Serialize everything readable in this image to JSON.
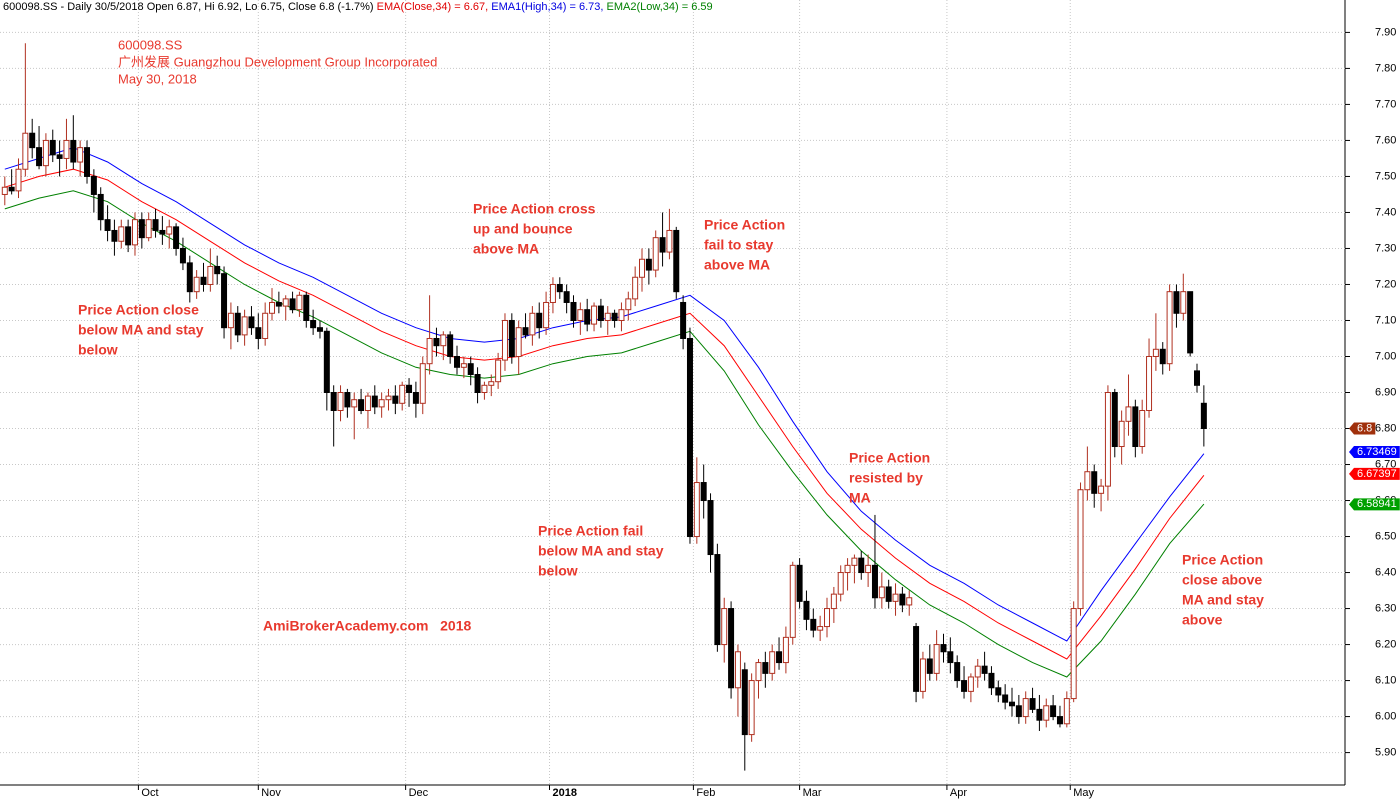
{
  "chart_data": {
    "type": "candlestick",
    "header": [
      {
        "text": "600098.SS - Daily 30/5/2018 Open 6.87, Hi 6.92, Lo 6.75, Close 6.8 (-1.7%) ",
        "color": "#000000"
      },
      {
        "text": "EMA(Close,34) = 6.67, ",
        "color": "#e00000"
      },
      {
        "text": "EMA1(High,34) = 6.73, ",
        "color": "#0000e0"
      },
      {
        "text": "EMA2(Low,34) = 6.59",
        "color": "#008000"
      }
    ],
    "title": [
      "600098.SS",
      "广州发展 Guangzhou Development Group Incorporated",
      "May 30, 2018"
    ],
    "watermark": "AmiBrokerAcademy.com   2018",
    "annotations": [
      {
        "lines": [
          "Price Action close",
          "below MA and stay",
          "below"
        ]
      },
      {
        "lines": [
          "Price Action cross",
          "up and bounce",
          "above MA"
        ]
      },
      {
        "lines": [
          "Price Action",
          "fail to stay",
          "above MA"
        ]
      },
      {
        "lines": [
          "Price Action fail",
          "below MA and stay",
          "below"
        ]
      },
      {
        "lines": [
          "Price Action",
          "resisted by",
          "MA"
        ]
      },
      {
        "lines": [
          "Price Action",
          "close above",
          "MA and stay",
          "above"
        ]
      }
    ],
    "xlim": [
      -0.7,
      195.6
    ],
    "xticks": [
      {
        "value": 19.5,
        "label": "Oct"
      },
      {
        "value": 37,
        "label": "Nov"
      },
      {
        "value": 58.5,
        "label": "Dec"
      },
      {
        "value": 79.5,
        "label": "2018"
      },
      {
        "value": 100.5,
        "label": "Feb"
      },
      {
        "value": 116,
        "label": "Mar"
      },
      {
        "value": 137.5,
        "label": "Apr"
      },
      {
        "value": 155.5,
        "label": "May"
      }
    ],
    "ylim": [
      5.81,
      7.99
    ],
    "yticks": [
      {
        "value": 5.9,
        "label": "5.90"
      },
      {
        "value": 6.0,
        "label": "6.00"
      },
      {
        "value": 6.1,
        "label": "6.10"
      },
      {
        "value": 6.2,
        "label": "6.20"
      },
      {
        "value": 6.3,
        "label": "6.30"
      },
      {
        "value": 6.4,
        "label": "6.40"
      },
      {
        "value": 6.5,
        "label": "6.50"
      },
      {
        "value": 6.6,
        "label": "6.60"
      },
      {
        "value": 6.7,
        "label": "6.70"
      },
      {
        "value": 6.8,
        "label": "6.80"
      },
      {
        "value": 6.9,
        "label": "6.90"
      },
      {
        "value": 7.0,
        "label": "7.00"
      },
      {
        "value": 7.1,
        "label": "7.10"
      },
      {
        "value": 7.2,
        "label": "7.20"
      },
      {
        "value": 7.3,
        "label": "7.30"
      },
      {
        "value": 7.4,
        "label": "7.40"
      },
      {
        "value": 7.5,
        "label": "7.50"
      },
      {
        "value": 7.6,
        "label": "7.60"
      },
      {
        "value": 7.7,
        "label": "7.70"
      },
      {
        "value": 7.8,
        "label": "7.80"
      },
      {
        "value": 7.9,
        "label": "7.90"
      }
    ],
    "grid": true,
    "up_color": "#b03020",
    "down_color": "#000000",
    "ohlc": [
      [
        7.45,
        7.5,
        7.42,
        7.47
      ],
      [
        7.47,
        7.52,
        7.45,
        7.46
      ],
      [
        7.46,
        7.55,
        7.44,
        7.52
      ],
      [
        7.52,
        7.87,
        7.5,
        7.62
      ],
      [
        7.62,
        7.66,
        7.55,
        7.58
      ],
      [
        7.58,
        7.64,
        7.52,
        7.53
      ],
      [
        7.53,
        7.62,
        7.5,
        7.6
      ],
      [
        7.6,
        7.63,
        7.54,
        7.56
      ],
      [
        7.56,
        7.6,
        7.5,
        7.55
      ],
      [
        7.55,
        7.66,
        7.52,
        7.6
      ],
      [
        7.6,
        7.67,
        7.52,
        7.54
      ],
      [
        7.54,
        7.6,
        7.5,
        7.58
      ],
      [
        7.58,
        7.6,
        7.48,
        7.5
      ],
      [
        7.5,
        7.52,
        7.4,
        7.45
      ],
      [
        7.45,
        7.47,
        7.35,
        7.38
      ],
      [
        7.38,
        7.42,
        7.32,
        7.35
      ],
      [
        7.35,
        7.38,
        7.28,
        7.32
      ],
      [
        7.32,
        7.38,
        7.3,
        7.36
      ],
      [
        7.36,
        7.38,
        7.29,
        7.31
      ],
      [
        7.31,
        7.4,
        7.28,
        7.38
      ],
      [
        7.38,
        7.4,
        7.3,
        7.33
      ],
      [
        7.33,
        7.4,
        7.32,
        7.38
      ],
      [
        7.38,
        7.41,
        7.33,
        7.35
      ],
      [
        7.35,
        7.39,
        7.31,
        7.34
      ],
      [
        7.34,
        7.38,
        7.3,
        7.36
      ],
      [
        7.36,
        7.37,
        7.28,
        7.3
      ],
      [
        7.3,
        7.33,
        7.24,
        7.26
      ],
      [
        7.26,
        7.28,
        7.15,
        7.18
      ],
      [
        7.18,
        7.24,
        7.16,
        7.22
      ],
      [
        7.22,
        7.26,
        7.18,
        7.2
      ],
      [
        7.2,
        7.3,
        7.18,
        7.25
      ],
      [
        7.25,
        7.28,
        7.2,
        7.23
      ],
      [
        7.23,
        7.25,
        7.05,
        7.08
      ],
      [
        7.08,
        7.15,
        7.02,
        7.12
      ],
      [
        7.12,
        7.14,
        7.04,
        7.06
      ],
      [
        7.06,
        7.13,
        7.03,
        7.11
      ],
      [
        7.11,
        7.14,
        7.06,
        7.08
      ],
      [
        7.08,
        7.12,
        7.02,
        7.05
      ],
      [
        7.05,
        7.15,
        7.03,
        7.12
      ],
      [
        7.12,
        7.19,
        7.1,
        7.15
      ],
      [
        7.15,
        7.18,
        7.12,
        7.14
      ],
      [
        7.14,
        7.17,
        7.1,
        7.16
      ],
      [
        7.16,
        7.18,
        7.12,
        7.13
      ],
      [
        7.13,
        7.18,
        7.11,
        7.17
      ],
      [
        7.17,
        7.18,
        7.08,
        7.1
      ],
      [
        7.1,
        7.13,
        7.06,
        7.08
      ],
      [
        7.08,
        7.1,
        7.05,
        7.07
      ],
      [
        7.07,
        7.08,
        6.85,
        6.9
      ],
      [
        6.9,
        6.92,
        6.75,
        6.85
      ],
      [
        6.85,
        6.92,
        6.82,
        6.9
      ],
      [
        6.9,
        6.91,
        6.83,
        6.86
      ],
      [
        6.86,
        6.9,
        6.77,
        6.88
      ],
      [
        6.88,
        6.91,
        6.84,
        6.85
      ],
      [
        6.85,
        6.9,
        6.8,
        6.89
      ],
      [
        6.89,
        6.92,
        6.84,
        6.86
      ],
      [
        6.86,
        6.9,
        6.83,
        6.88
      ],
      [
        6.88,
        6.91,
        6.85,
        6.89
      ],
      [
        6.89,
        6.92,
        6.84,
        6.87
      ],
      [
        6.87,
        6.93,
        6.85,
        6.92
      ],
      [
        6.92,
        6.94,
        6.86,
        6.9
      ],
      [
        6.9,
        6.93,
        6.83,
        6.87
      ],
      [
        6.87,
        7.0,
        6.84,
        6.98
      ],
      [
        6.98,
        7.17,
        6.95,
        7.05
      ],
      [
        7.05,
        7.08,
        7.0,
        7.03
      ],
      [
        7.03,
        7.07,
        6.99,
        7.06
      ],
      [
        7.06,
        7.07,
        6.98,
        7.0
      ],
      [
        7.0,
        7.03,
        6.95,
        6.97
      ],
      [
        6.97,
        7.0,
        6.94,
        6.98
      ],
      [
        6.98,
        7.0,
        6.92,
        6.95
      ],
      [
        6.95,
        6.97,
        6.87,
        6.9
      ],
      [
        6.9,
        6.93,
        6.88,
        6.92
      ],
      [
        6.92,
        6.95,
        6.89,
        6.93
      ],
      [
        6.93,
        7.01,
        6.91,
        6.99
      ],
      [
        6.99,
        7.12,
        6.96,
        7.1
      ],
      [
        7.1,
        7.12,
        6.98,
        7.0
      ],
      [
        7.0,
        7.1,
        6.95,
        7.08
      ],
      [
        7.08,
        7.12,
        7.05,
        7.06
      ],
      [
        7.06,
        7.14,
        7.03,
        7.12
      ],
      [
        7.12,
        7.15,
        7.05,
        7.08
      ],
      [
        7.08,
        7.18,
        7.06,
        7.15
      ],
      [
        7.15,
        7.22,
        7.12,
        7.2
      ],
      [
        7.2,
        7.22,
        7.16,
        7.18
      ],
      [
        7.18,
        7.2,
        7.12,
        7.15
      ],
      [
        7.15,
        7.17,
        7.08,
        7.1
      ],
      [
        7.1,
        7.15,
        7.06,
        7.13
      ],
      [
        7.13,
        7.16,
        7.07,
        7.09
      ],
      [
        7.09,
        7.15,
        7.07,
        7.14
      ],
      [
        7.14,
        7.16,
        7.08,
        7.1
      ],
      [
        7.1,
        7.14,
        7.06,
        7.12
      ],
      [
        7.12,
        7.13,
        7.08,
        7.1
      ],
      [
        7.1,
        7.15,
        7.07,
        7.13
      ],
      [
        7.13,
        7.18,
        7.1,
        7.16
      ],
      [
        7.16,
        7.25,
        7.14,
        7.22
      ],
      [
        7.22,
        7.3,
        7.18,
        7.27
      ],
      [
        7.27,
        7.3,
        7.2,
        7.24
      ],
      [
        7.24,
        7.35,
        7.22,
        7.33
      ],
      [
        7.33,
        7.4,
        7.25,
        7.29
      ],
      [
        7.29,
        7.41,
        7.27,
        7.35
      ],
      [
        7.35,
        7.36,
        7.16,
        7.18
      ],
      [
        7.15,
        7.17,
        7.02,
        7.05
      ],
      [
        7.05,
        7.08,
        6.48,
        6.5
      ],
      [
        6.5,
        6.72,
        6.48,
        6.65
      ],
      [
        6.65,
        6.7,
        6.55,
        6.6
      ],
      [
        6.6,
        6.62,
        6.4,
        6.45
      ],
      [
        6.45,
        6.48,
        6.18,
        6.2
      ],
      [
        6.2,
        6.33,
        6.15,
        6.3
      ],
      [
        6.3,
        6.32,
        6.05,
        6.08
      ],
      [
        6.08,
        6.2,
        6.0,
        6.18
      ],
      [
        6.13,
        6.15,
        5.85,
        5.95
      ],
      [
        5.95,
        6.12,
        5.93,
        6.1
      ],
      [
        6.1,
        6.16,
        6.05,
        6.15
      ],
      [
        6.15,
        6.18,
        6.08,
        6.12
      ],
      [
        6.12,
        6.2,
        6.1,
        6.18
      ],
      [
        6.18,
        6.22,
        6.13,
        6.15
      ],
      [
        6.15,
        6.25,
        6.12,
        6.22
      ],
      [
        6.22,
        6.43,
        6.2,
        6.42
      ],
      [
        6.42,
        6.44,
        6.3,
        6.32
      ],
      [
        6.32,
        6.35,
        6.24,
        6.27
      ],
      [
        6.27,
        6.3,
        6.22,
        6.24
      ],
      [
        6.24,
        6.28,
        6.21,
        6.25
      ],
      [
        6.25,
        6.33,
        6.22,
        6.3
      ],
      [
        6.3,
        6.36,
        6.26,
        6.34
      ],
      [
        6.34,
        6.42,
        6.32,
        6.4
      ],
      [
        6.4,
        6.44,
        6.35,
        6.42
      ],
      [
        6.42,
        6.45,
        6.37,
        6.44
      ],
      [
        6.44,
        6.46,
        6.38,
        6.4
      ],
      [
        6.4,
        6.45,
        6.36,
        6.42
      ],
      [
        6.42,
        6.56,
        6.3,
        6.33
      ],
      [
        6.33,
        6.4,
        6.3,
        6.36
      ],
      [
        6.36,
        6.38,
        6.3,
        6.32
      ],
      [
        6.32,
        6.37,
        6.28,
        6.34
      ],
      [
        6.34,
        6.36,
        6.29,
        6.31
      ],
      [
        6.31,
        6.35,
        6.28,
        6.33
      ],
      [
        6.25,
        6.26,
        6.04,
        6.07
      ],
      [
        6.07,
        6.18,
        6.05,
        6.16
      ],
      [
        6.16,
        6.2,
        6.1,
        6.12
      ],
      [
        6.12,
        6.24,
        6.1,
        6.2
      ],
      [
        6.2,
        6.23,
        6.15,
        6.18
      ],
      [
        6.18,
        6.22,
        6.12,
        6.15
      ],
      [
        6.15,
        6.17,
        6.08,
        6.1
      ],
      [
        6.1,
        6.14,
        6.05,
        6.07
      ],
      [
        6.07,
        6.12,
        6.04,
        6.11
      ],
      [
        6.11,
        6.16,
        6.08,
        6.14
      ],
      [
        6.14,
        6.18,
        6.1,
        6.12
      ],
      [
        6.12,
        6.14,
        6.06,
        6.08
      ],
      [
        6.08,
        6.1,
        6.04,
        6.06
      ],
      [
        6.06,
        6.09,
        6.02,
        6.04
      ],
      [
        6.04,
        6.08,
        6.0,
        6.03
      ],
      [
        6.03,
        6.06,
        5.98,
        6.0
      ],
      [
        6.0,
        6.07,
        5.98,
        6.05
      ],
      [
        6.05,
        6.08,
        6.01,
        6.02
      ],
      [
        6.02,
        6.06,
        5.96,
        5.99
      ],
      [
        5.99,
        6.05,
        5.97,
        6.03
      ],
      [
        6.03,
        6.06,
        5.99,
        6.0
      ],
      [
        6.0,
        6.03,
        5.97,
        5.98
      ],
      [
        5.98,
        6.07,
        5.97,
        6.05
      ],
      [
        6.05,
        6.32,
        6.04,
        6.3
      ],
      [
        6.3,
        6.65,
        6.28,
        6.63
      ],
      [
        6.63,
        6.75,
        6.6,
        6.68
      ],
      [
        6.68,
        6.7,
        6.58,
        6.62
      ],
      [
        6.62,
        6.66,
        6.57,
        6.64
      ],
      [
        6.64,
        6.92,
        6.6,
        6.9
      ],
      [
        6.9,
        6.91,
        6.72,
        6.75
      ],
      [
        6.75,
        6.85,
        6.7,
        6.82
      ],
      [
        6.82,
        6.95,
        6.78,
        6.86
      ],
      [
        6.86,
        6.88,
        6.72,
        6.75
      ],
      [
        6.75,
        6.88,
        6.73,
        6.85
      ],
      [
        6.85,
        7.05,
        6.83,
        7.0
      ],
      [
        7.0,
        7.12,
        6.96,
        7.02
      ],
      [
        7.02,
        7.04,
        6.95,
        6.98
      ],
      [
        6.98,
        7.2,
        6.96,
        7.18
      ],
      [
        7.18,
        7.2,
        7.08,
        7.12
      ],
      [
        7.12,
        7.23,
        7.1,
        7.18
      ],
      [
        7.18,
        7.18,
        7.0,
        7.01
      ],
      [
        6.96,
        6.98,
        6.9,
        6.92
      ],
      [
        6.87,
        6.92,
        6.75,
        6.8
      ]
    ],
    "ema_x": [
      0,
      5,
      10,
      15,
      20,
      25,
      30,
      35,
      40,
      45,
      50,
      55,
      60,
      65,
      70,
      75,
      80,
      85,
      90,
      95,
      100,
      105,
      110,
      115,
      120,
      125,
      130,
      135,
      140,
      145,
      150,
      155,
      160,
      165,
      170,
      175
    ],
    "series": [
      {
        "name": "EMA1(High,34)",
        "color": "#0000ff",
        "values": [
          7.52,
          7.55,
          7.58,
          7.54,
          7.48,
          7.43,
          7.37,
          7.31,
          7.26,
          7.22,
          7.17,
          7.12,
          7.08,
          7.05,
          7.04,
          7.05,
          7.08,
          7.1,
          7.11,
          7.14,
          7.17,
          7.1,
          6.97,
          6.82,
          6.68,
          6.57,
          6.49,
          6.42,
          6.37,
          6.31,
          6.26,
          6.21,
          6.35,
          6.48,
          6.61,
          6.73
        ]
      },
      {
        "name": "EMA(Close,34)",
        "color": "#ff0000",
        "values": [
          7.47,
          7.5,
          7.52,
          7.49,
          7.43,
          7.38,
          7.32,
          7.26,
          7.21,
          7.17,
          7.12,
          7.07,
          7.03,
          7.0,
          6.99,
          7.0,
          7.03,
          7.05,
          7.06,
          7.09,
          7.12,
          7.03,
          6.89,
          6.75,
          6.62,
          6.52,
          6.44,
          6.37,
          6.32,
          6.26,
          6.21,
          6.16,
          6.28,
          6.41,
          6.55,
          6.67
        ]
      },
      {
        "name": "EMA2(Low,34)",
        "color": "#008000",
        "values": [
          7.41,
          7.44,
          7.46,
          7.43,
          7.37,
          7.32,
          7.26,
          7.2,
          7.15,
          7.11,
          7.06,
          7.01,
          6.97,
          6.95,
          6.94,
          6.95,
          6.98,
          7.0,
          7.01,
          7.04,
          7.07,
          6.96,
          6.81,
          6.68,
          6.56,
          6.46,
          6.38,
          6.31,
          6.26,
          6.2,
          6.15,
          6.11,
          6.21,
          6.34,
          6.48,
          6.59
        ]
      }
    ],
    "price_tags": [
      {
        "value": 6.8,
        "label": "6.8",
        "color": "#a0300c"
      },
      {
        "value": 6.73469,
        "label": "6.73469",
        "color": "#0000ff"
      },
      {
        "value": 6.67397,
        "label": "6.67397",
        "color": "#ff0000"
      },
      {
        "value": 6.58941,
        "label": "6.58941",
        "color": "#00a000"
      }
    ]
  }
}
